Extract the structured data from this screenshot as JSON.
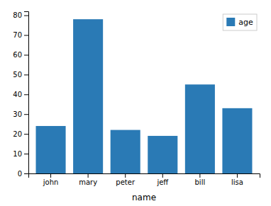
{
  "chart_data": {
    "type": "bar",
    "categories": [
      "john",
      "mary",
      "peter",
      "jeff",
      "bill",
      "lisa"
    ],
    "series": [
      {
        "name": "age",
        "color": "#2a7ab5",
        "values": [
          24,
          78,
          22,
          19,
          45,
          33
        ]
      }
    ],
    "xlabel": "name",
    "ylim": [
      0,
      82
    ],
    "yticks": [
      0,
      10,
      20,
      30,
      40,
      50,
      60,
      70,
      80
    ],
    "legend": "upper right"
  }
}
